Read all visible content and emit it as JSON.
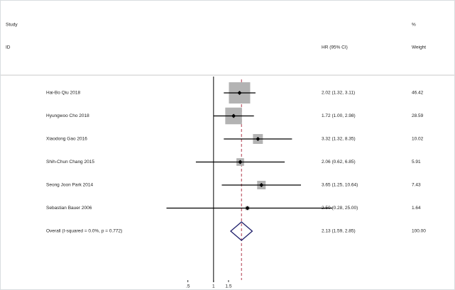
{
  "chart_data": {
    "type": "forest",
    "headers": {
      "study": "Study",
      "id": "ID",
      "effect": "HR (95% CI)",
      "percent": "%",
      "weight": "Weight"
    },
    "log_scale": true,
    "xlim": [
      0.2,
      30
    ],
    "xticks": [
      {
        "value": 0.5,
        "label": ".5"
      },
      1,
      1.5
    ],
    "reference_line": 1,
    "box_color": "#b3b3b3",
    "diamond_color": "#1f1f6b",
    "estimate_line_color": "#b0384a",
    "studies": [
      {
        "name": "Hai-Bo Qiu 2018",
        "hr": 2.02,
        "ci": [
          1.32,
          3.11
        ],
        "label": "2.02 (1.32, 3.11)",
        "weight": 46.42
      },
      {
        "name": "Hyungwoo Cho 2018",
        "hr": 1.72,
        "ci": [
          1.0,
          2.98
        ],
        "label": "1.72 (1.00, 2.98)",
        "weight": 28.59
      },
      {
        "name": "Xiaodong Gao 2016",
        "hr": 3.32,
        "ci": [
          1.32,
          8.35
        ],
        "label": "3.32 (1.32, 8.35)",
        "weight": 10.02
      },
      {
        "name": "Shih-Chun Chang 2015",
        "hr": 2.06,
        "ci": [
          0.62,
          6.85
        ],
        "label": "2.06 (0.62, 6.85)",
        "weight": 5.91
      },
      {
        "name": "Seong Joon Park 2014",
        "hr": 3.65,
        "ci": [
          1.25,
          10.64
        ],
        "label": "3.65 (1.25, 10.64)",
        "weight": 7.43
      },
      {
        "name": "Sebastian Bauer 2006",
        "hr": 2.5,
        "ci": [
          0.28,
          25.0
        ],
        "label": "2.50 (0.28, 25.00)",
        "weight": 1.64
      }
    ],
    "overall": {
      "name": "Overall  (I-squared = 0.0%, p = 0.772)",
      "hr": 2.13,
      "ci": [
        1.59,
        2.85
      ],
      "label": "2.13 (1.59, 2.85)",
      "weight": 100,
      "weight_label": "100.00"
    }
  }
}
